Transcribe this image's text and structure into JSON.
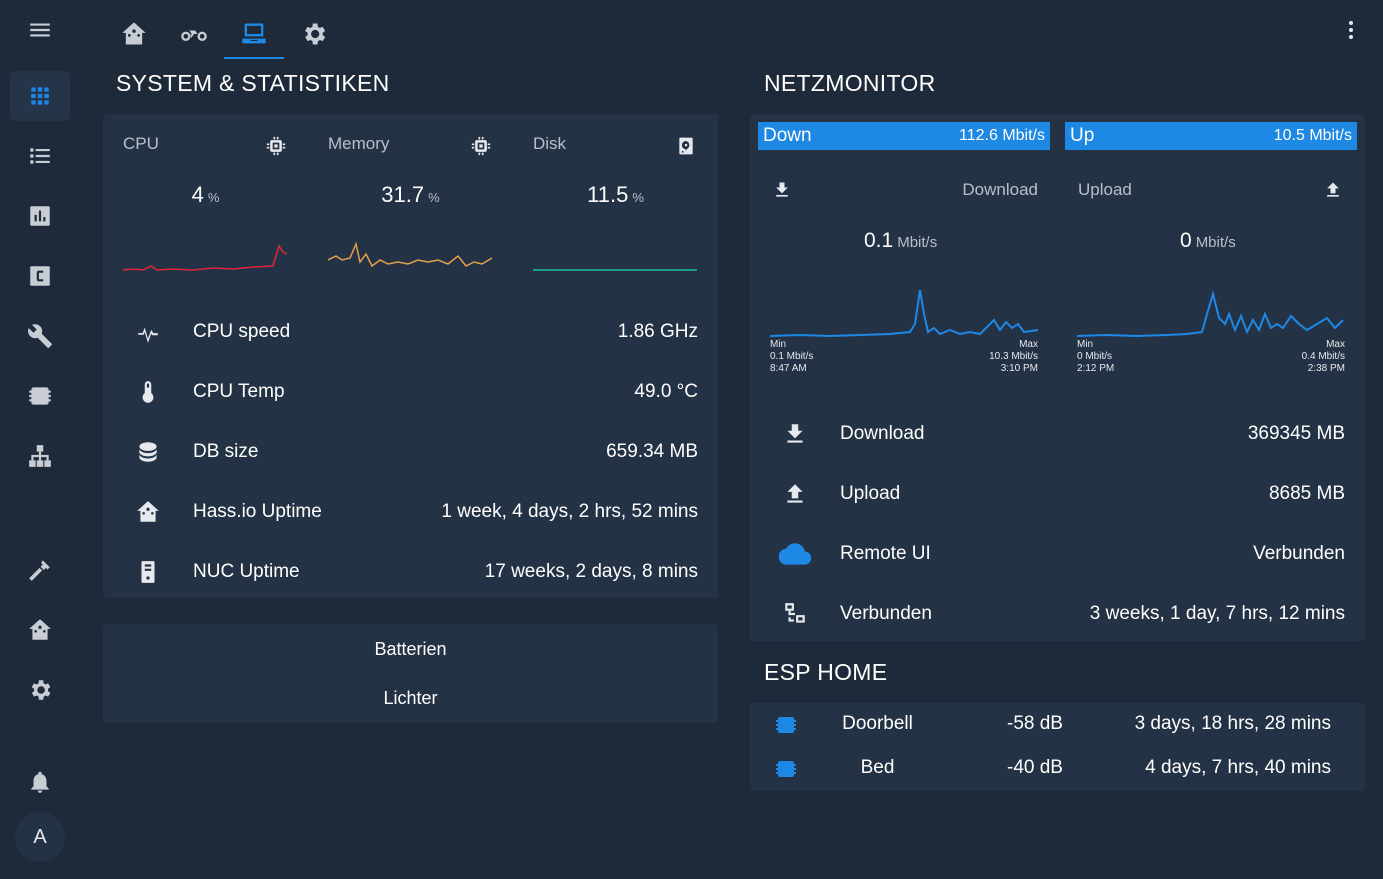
{
  "sidebar": {
    "items": [
      {
        "icon": "menu-icon"
      },
      {
        "icon": "grid-icon",
        "active": true
      },
      {
        "icon": "list-icon"
      },
      {
        "icon": "chart-icon"
      },
      {
        "icon": "c-box-icon"
      },
      {
        "icon": "wrench-icon"
      },
      {
        "icon": "chip-icon"
      },
      {
        "icon": "sitemap-icon"
      },
      {
        "icon": "hammer-icon"
      },
      {
        "icon": "home-assistant-icon"
      },
      {
        "icon": "gear-icon"
      },
      {
        "icon": "bell-icon"
      }
    ],
    "avatar_letter": "A"
  },
  "tabs": [
    {
      "icon": "home-assistant-icon"
    },
    {
      "icon": "motorbike-icon"
    },
    {
      "icon": "laptop-icon",
      "active": true
    },
    {
      "icon": "gear-icon"
    }
  ],
  "system": {
    "title": "SYSTEM & STATISTIKEN",
    "gauges": [
      {
        "name": "CPU",
        "value": "4",
        "unit": "%",
        "color": "#e0263a",
        "icon": "chip-icon"
      },
      {
        "name": "Memory",
        "value": "31.7",
        "unit": "%",
        "color": "#e3a04a",
        "icon": "chip-icon"
      },
      {
        "name": "Disk",
        "value": "11.5",
        "unit": "%",
        "color": "#1abc9c",
        "icon": "harddisk-icon"
      }
    ],
    "rows": [
      {
        "icon": "pulse-icon",
        "label": "CPU speed",
        "value": "1.86 GHz"
      },
      {
        "icon": "thermometer-icon",
        "label": "CPU Temp",
        "value": "49.0 °C"
      },
      {
        "icon": "database-icon",
        "label": "DB size",
        "value": "659.34 MB"
      },
      {
        "icon": "home-assistant-icon",
        "label": "Hass.io Uptime",
        "value": "1 week, 4 days, 2 hrs, 52 mins"
      },
      {
        "icon": "server-icon",
        "label": "NUC Uptime",
        "value": "17 weeks, 2 days, 8 mins"
      }
    ]
  },
  "buttons": {
    "batterien": "Batterien",
    "lichter": "Lichter"
  },
  "net": {
    "title": "NETZMONITOR",
    "bars": {
      "down_label": "Down",
      "down_value": "112.6 Mbit/s",
      "up_label": "Up",
      "up_value": "10.5 Mbit/s"
    },
    "download": {
      "title": "Download",
      "value": "0.1",
      "unit": "Mbit/s",
      "min_label": "Min",
      "min_value": "0.1 Mbit/s",
      "min_time": "8:47 AM",
      "max_label": "Max",
      "max_value": "10.3 Mbit/s",
      "max_time": "3:10 PM"
    },
    "upload": {
      "title": "Upload",
      "value": "0",
      "unit": "Mbit/s",
      "min_label": "Min",
      "min_value": "0 Mbit/s",
      "min_time": "2:12 PM",
      "max_label": "Max",
      "max_value": "0.4 Mbit/s",
      "max_time": "2:38 PM"
    },
    "rows": [
      {
        "icon": "download-icon",
        "label": "Download",
        "value": "369345 MB"
      },
      {
        "icon": "upload-icon",
        "label": "Upload",
        "value": "8685 MB"
      },
      {
        "icon": "cloud-icon",
        "label": "Remote UI",
        "value": "Verbunden"
      },
      {
        "icon": "lan-icon",
        "label": "Verbunden",
        "value": "3 weeks, 1 day, 7 hrs, 12 mins"
      }
    ]
  },
  "esp": {
    "title": "ESP HOME",
    "rows": [
      {
        "icon": "chip-icon",
        "name": "Doorbell",
        "signal": "-58 dB",
        "uptime": "3 days, 18 hrs, 28 mins"
      },
      {
        "icon": "chip-icon",
        "name": "Bed",
        "signal": "-40 dB",
        "uptime": "4 days, 7 hrs, 40 mins"
      }
    ]
  },
  "colors": {
    "background": "#1e2a3a",
    "card": "#243246",
    "accent": "#1e88e5"
  }
}
